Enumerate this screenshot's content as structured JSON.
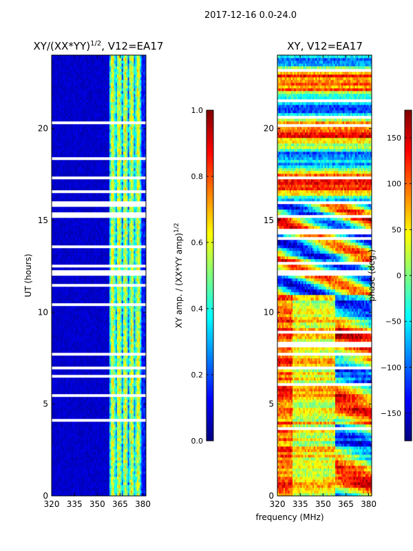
{
  "suptitle": "2017-12-16 0.0-24.0",
  "xlabel": "frequency (MHz)",
  "colormap": [
    "#00007f",
    "#0000ff",
    "#007fff",
    "#00ffff",
    "#7fff7f",
    "#ffff00",
    "#ff7f00",
    "#ff0000",
    "#7f0000"
  ],
  "chart_data": [
    {
      "type": "heatmap",
      "title_main": "XY/(XX*YY)",
      "title_sup": "1/2",
      "title_tail": ", V12=EA17",
      "ylabel": "UT (hours)",
      "xlim": [
        320,
        382
      ],
      "ylim": [
        0,
        24
      ],
      "xticks": [
        320,
        335,
        350,
        365,
        380
      ],
      "yticks": [
        0,
        5,
        10,
        15,
        20
      ],
      "colorbar": {
        "label_main": "XY amp. / (XX*YY amp)",
        "label_sup": "1/2",
        "range": [
          0.0,
          1.0
        ],
        "ticks": [
          "0.0",
          "0.2",
          "0.4",
          "0.6",
          "0.8",
          "1.0"
        ]
      }
    },
    {
      "type": "heatmap",
      "title": "XY, V12=EA17",
      "xlim": [
        320,
        382
      ],
      "ylim": [
        0,
        24
      ],
      "xticks": [
        320,
        335,
        350,
        365,
        380
      ],
      "yticks": [
        0,
        5,
        10,
        15,
        20
      ],
      "colorbar": {
        "label": "phase (deg.)",
        "range": [
          -180,
          180
        ],
        "ticks": [
          "−150",
          "−100",
          "−50",
          "0",
          "50",
          "100",
          "150"
        ]
      }
    }
  ],
  "gaps_hours": [
    15.2,
    15.25,
    15.9,
    16.0,
    12.0,
    12.3,
    7.6,
    7.8,
    6.85,
    7.0
  ]
}
